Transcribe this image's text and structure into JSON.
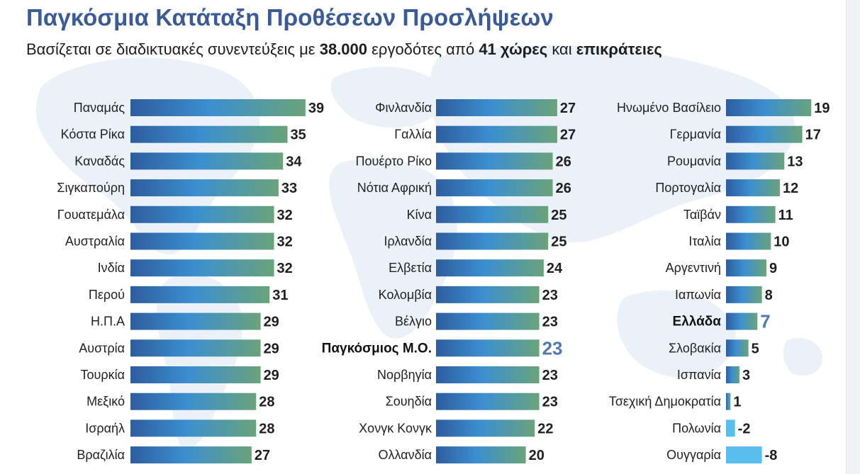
{
  "header": {
    "title": "Παγκόσμια Κατάταξη Προθέσεων Προσλήψεων",
    "subtitle_pre": "Βασίζεται σε διαδικτυακές συνεντεύξεις με ",
    "subtitle_num1": "38.000",
    "subtitle_mid": " εργοδότες από ",
    "subtitle_num2": "41 χώρες",
    "subtitle_and": " και ",
    "subtitle_end": "επικράτειες"
  },
  "colors": {
    "title": "#3a5b95",
    "bar_dark_blue": "#2e5d9e",
    "bar_light_blue": "#3b8fd0",
    "bar_green": "#6aa37a",
    "highlight_value": "#4f79b4",
    "negative_bar": "#5bbfee",
    "map_background": "#eaf2fa"
  },
  "chart_data": {
    "type": "bar",
    "orientation": "horizontal",
    "highlighted": [
      "Ελλάδα",
      "Παγκόσμιος Μ.Ο."
    ],
    "columns": [
      {
        "categories": [
          "Παναμάς",
          "Κόστα Ρίκα",
          "Καναδάς",
          "Σιγκαπούρη",
          "Γουατεμάλα",
          "Αυστραλία",
          "Ινδία",
          "Περού",
          "Η.Π.Α",
          "Αυστρία",
          "Τουρκία",
          "Μεξικό",
          "Ισραήλ",
          "Βραζιλία"
        ],
        "values": [
          39,
          35,
          34,
          33,
          32,
          32,
          32,
          31,
          29,
          29,
          29,
          28,
          28,
          27
        ]
      },
      {
        "categories": [
          "Φινλανδία",
          "Γαλλία",
          "Πουέρτο Ρίκο",
          "Νότια Αφρική",
          "Κίνα",
          "Ιρλανδία",
          "Ελβετία",
          "Κολομβία",
          "Βέλγιο",
          "Παγκόσμιος Μ.Ο.",
          "Νορβηγία",
          "Σουηδία",
          "Χονγκ Κονγκ",
          "Ολλανδία"
        ],
        "values": [
          27,
          27,
          26,
          26,
          25,
          25,
          24,
          23,
          23,
          23,
          23,
          23,
          22,
          20
        ]
      },
      {
        "categories": [
          "Ηνωμένο Βασίλειο",
          "Γερμανία",
          "Ρουμανία",
          "Πορτογαλία",
          "Ταϊβάν",
          "Ιταλία",
          "Αργεντινή",
          "Ιαπωνία",
          "Ελλάδα",
          "Σλοβακία",
          "Ισπανία",
          "Τσεχική Δημοκρατία",
          "Πολωνία",
          "Ουγγαρία"
        ],
        "values": [
          19,
          17,
          13,
          12,
          11,
          10,
          9,
          8,
          7,
          5,
          3,
          1,
          -2,
          -8
        ]
      }
    ]
  }
}
